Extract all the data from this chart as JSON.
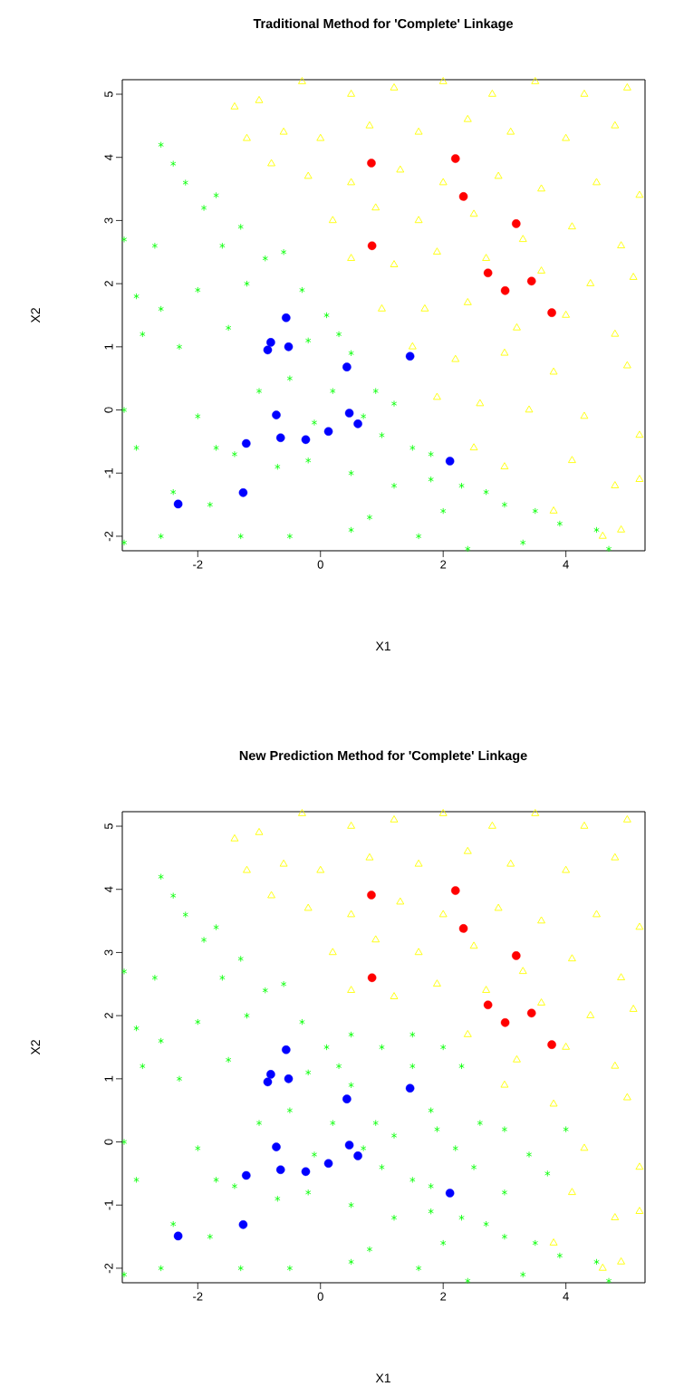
{
  "chart_data": [
    {
      "type": "scatter",
      "title": "Traditional Method for 'Complete' Linkage",
      "xlabel": "X1",
      "ylabel": "X2",
      "xlim": [
        -3.23,
        5.29
      ],
      "ylim": [
        -2.23,
        5.23
      ],
      "xticks": [
        -2,
        0,
        2,
        4
      ],
      "yticks": [
        -2,
        -1,
        0,
        1,
        2,
        3,
        4,
        5
      ],
      "series": [
        {
          "color": "#00ff00",
          "marker": "cross",
          "x": [
            -2.6,
            -2.4,
            -2.2,
            -1.9,
            -1.7,
            -1.3,
            -1.6,
            -2.7,
            -3.2,
            -3.0,
            -2.6,
            -2.9,
            -2.3,
            -2.0,
            -1.5,
            -1.2,
            -0.9,
            -0.6,
            -0.3,
            0.1,
            0.3,
            -0.2,
            0.5,
            0.9,
            1.2,
            0.7,
            1.0,
            1.5,
            1.8,
            2.3,
            2.7,
            3.0,
            3.5,
            3.9,
            4.5,
            4.7,
            2.0,
            1.2,
            0.5,
            -0.2,
            -0.7,
            -1.4,
            -2.0,
            -1.7,
            -2.4,
            -2.6,
            -3.2,
            -3.0,
            -3.2,
            -1.0,
            -0.5,
            0.2,
            -0.1,
            0.8,
            1.6,
            2.4,
            -1.3,
            -0.5,
            0.5,
            -1.8,
            3.3,
            1.8
          ],
          "values": [
            4.2,
            3.9,
            3.6,
            3.2,
            3.4,
            2.9,
            2.6,
            2.6,
            2.7,
            1.8,
            1.6,
            1.2,
            1.0,
            1.9,
            1.3,
            2.0,
            2.4,
            2.5,
            1.9,
            1.5,
            1.2,
            1.1,
            0.9,
            0.3,
            0.1,
            -0.1,
            -0.4,
            -0.6,
            -0.7,
            -1.2,
            -1.3,
            -1.5,
            -1.6,
            -1.8,
            -1.9,
            -2.2,
            -1.6,
            -1.2,
            -1.0,
            -0.8,
            -0.9,
            -0.7,
            -0.1,
            -0.6,
            -1.3,
            -2.0,
            -2.1,
            -0.6,
            0.0,
            0.3,
            0.5,
            0.3,
            -0.2,
            -1.7,
            -2.0,
            -2.2,
            -2.0,
            -2.0,
            -1.9,
            -1.5,
            -2.1,
            -1.1
          ]
        },
        {
          "color": "#ffff00",
          "marker": "triangle",
          "x": [
            -1.4,
            -1.0,
            -0.3,
            0.5,
            1.2,
            2.0,
            2.8,
            3.5,
            4.3,
            5.0,
            -1.2,
            -0.6,
            0.0,
            0.8,
            1.6,
            2.4,
            3.1,
            4.0,
            4.8,
            -0.8,
            -0.2,
            0.5,
            1.3,
            2.0,
            2.9,
            3.6,
            4.5,
            5.2,
            0.2,
            0.9,
            1.6,
            2.5,
            3.3,
            4.1,
            4.9,
            0.5,
            1.2,
            1.9,
            2.7,
            3.6,
            4.4,
            5.1,
            1.0,
            1.7,
            2.4,
            3.2,
            4.0,
            4.8,
            1.5,
            2.2,
            3.0,
            3.8,
            5.0,
            1.9,
            2.6,
            3.4,
            4.3,
            5.2,
            2.5,
            3.0,
            4.1,
            4.8,
            5.2,
            3.8,
            4.6,
            4.9
          ],
          "values": [
            4.8,
            4.9,
            5.2,
            5.0,
            5.1,
            5.2,
            5.0,
            5.2,
            5.0,
            5.1,
            4.3,
            4.4,
            4.3,
            4.5,
            4.4,
            4.6,
            4.4,
            4.3,
            4.5,
            3.9,
            3.7,
            3.6,
            3.8,
            3.6,
            3.7,
            3.5,
            3.6,
            3.4,
            3.0,
            3.2,
            3.0,
            3.1,
            2.7,
            2.9,
            2.6,
            2.4,
            2.3,
            2.5,
            2.4,
            2.2,
            2.0,
            2.1,
            1.6,
            1.6,
            1.7,
            1.3,
            1.5,
            1.2,
            1.0,
            0.8,
            0.9,
            0.6,
            0.7,
            0.2,
            0.1,
            0.0,
            -0.1,
            -0.4,
            -0.6,
            -0.9,
            -0.8,
            -1.2,
            -1.1,
            -1.6,
            -2.0,
            -1.9
          ]
        },
        {
          "color": "#0000ff",
          "marker": "circle",
          "x": [
            -2.32,
            -1.26,
            -1.21,
            -0.72,
            -0.65,
            -0.24,
            0.13,
            0.47,
            0.61,
            0.43,
            -0.86,
            -0.81,
            -0.56,
            -0.52,
            1.46,
            2.11
          ],
          "values": [
            -1.49,
            -1.31,
            -0.53,
            -0.08,
            -0.44,
            -0.47,
            -0.34,
            -0.05,
            -0.22,
            0.68,
            0.95,
            1.07,
            1.46,
            1.0,
            0.85,
            -0.81
          ]
        },
        {
          "color": "#ff0000",
          "marker": "circle",
          "x": [
            0.83,
            2.2,
            2.33,
            3.19,
            2.73,
            3.01,
            3.44,
            3.77,
            0.84
          ],
          "values": [
            3.91,
            3.98,
            3.38,
            2.95,
            2.17,
            1.89,
            2.04,
            1.54,
            2.6
          ]
        }
      ]
    },
    {
      "type": "scatter",
      "title": "New Prediction Method for 'Complete' Linkage",
      "xlabel": "X1",
      "ylabel": "X2",
      "xlim": [
        -3.23,
        5.29
      ],
      "ylim": [
        -2.23,
        5.23
      ],
      "xticks": [
        -2,
        0,
        2,
        4
      ],
      "yticks": [
        -2,
        -1,
        0,
        1,
        2,
        3,
        4,
        5
      ],
      "series": [
        {
          "color": "#00ff00",
          "marker": "cross",
          "x": [
            -2.6,
            -2.4,
            -2.2,
            -1.9,
            -1.7,
            -1.3,
            -1.6,
            -2.7,
            -3.2,
            -3.0,
            -2.6,
            -2.9,
            -2.3,
            -2.0,
            -1.5,
            -1.2,
            -0.9,
            -0.6,
            -0.3,
            0.1,
            0.3,
            -0.2,
            0.5,
            0.9,
            1.2,
            0.7,
            1.0,
            1.5,
            1.8,
            2.3,
            2.7,
            3.0,
            3.5,
            3.9,
            4.5,
            4.7,
            2.0,
            1.2,
            0.5,
            -0.2,
            -0.7,
            -1.4,
            -2.0,
            -1.7,
            -2.4,
            -2.6,
            -3.2,
            -3.0,
            -3.2,
            -1.0,
            -0.5,
            0.2,
            -0.1,
            0.8,
            1.6,
            2.4,
            -1.3,
            -0.5,
            0.5,
            -1.8,
            3.3,
            1.8,
            0.5,
            1.0,
            1.5,
            2.0,
            2.3,
            1.5,
            1.8,
            2.6,
            3.0,
            3.4,
            4.0,
            3.7,
            2.5,
            2.2,
            3.0,
            1.9
          ],
          "values": [
            4.2,
            3.9,
            3.6,
            3.2,
            3.4,
            2.9,
            2.6,
            2.6,
            2.7,
            1.8,
            1.6,
            1.2,
            1.0,
            1.9,
            1.3,
            2.0,
            2.4,
            2.5,
            1.9,
            1.5,
            1.2,
            1.1,
            0.9,
            0.3,
            0.1,
            -0.1,
            -0.4,
            -0.6,
            -0.7,
            -1.2,
            -1.3,
            -1.5,
            -1.6,
            -1.8,
            -1.9,
            -2.2,
            -1.6,
            -1.2,
            -1.0,
            -0.8,
            -0.9,
            -0.7,
            -0.1,
            -0.6,
            -1.3,
            -2.0,
            -2.1,
            -0.6,
            0.0,
            0.3,
            0.5,
            0.3,
            -0.2,
            -1.7,
            -2.0,
            -2.2,
            -2.0,
            -2.0,
            -1.9,
            -1.5,
            -2.1,
            -1.1,
            1.7,
            1.5,
            1.7,
            1.5,
            1.2,
            1.2,
            0.5,
            0.3,
            0.2,
            -0.2,
            0.2,
            -0.5,
            -0.4,
            -0.1,
            -0.8,
            0.2
          ]
        },
        {
          "color": "#ffff00",
          "marker": "triangle",
          "x": [
            -1.4,
            -1.0,
            -0.3,
            0.5,
            1.2,
            2.0,
            2.8,
            3.5,
            4.3,
            5.0,
            -1.2,
            -0.6,
            0.0,
            0.8,
            1.6,
            2.4,
            3.1,
            4.0,
            4.8,
            -0.8,
            -0.2,
            0.5,
            1.3,
            2.0,
            2.9,
            3.6,
            4.5,
            5.2,
            0.2,
            0.9,
            1.6,
            2.5,
            3.3,
            4.1,
            4.9,
            0.5,
            1.2,
            1.9,
            2.7,
            3.6,
            4.4,
            5.1,
            2.4,
            3.2,
            4.0,
            4.8,
            3.0,
            3.8,
            5.0,
            4.3,
            5.2,
            4.1,
            4.8,
            5.2,
            3.8,
            4.6,
            4.9
          ],
          "values": [
            4.8,
            4.9,
            5.2,
            5.0,
            5.1,
            5.2,
            5.0,
            5.2,
            5.0,
            5.1,
            4.3,
            4.4,
            4.3,
            4.5,
            4.4,
            4.6,
            4.4,
            4.3,
            4.5,
            3.9,
            3.7,
            3.6,
            3.8,
            3.6,
            3.7,
            3.5,
            3.6,
            3.4,
            3.0,
            3.2,
            3.0,
            3.1,
            2.7,
            2.9,
            2.6,
            2.4,
            2.3,
            2.5,
            2.4,
            2.2,
            2.0,
            2.1,
            1.7,
            1.3,
            1.5,
            1.2,
            0.9,
            0.6,
            0.7,
            -0.1,
            -0.4,
            -0.8,
            -1.2,
            -1.1,
            -1.6,
            -2.0,
            -1.9
          ]
        },
        {
          "color": "#0000ff",
          "marker": "circle",
          "x": [
            -2.32,
            -1.26,
            -1.21,
            -0.72,
            -0.65,
            -0.24,
            0.13,
            0.47,
            0.61,
            0.43,
            -0.86,
            -0.81,
            -0.56,
            -0.52,
            1.46,
            2.11
          ],
          "values": [
            -1.49,
            -1.31,
            -0.53,
            -0.08,
            -0.44,
            -0.47,
            -0.34,
            -0.05,
            -0.22,
            0.68,
            0.95,
            1.07,
            1.46,
            1.0,
            0.85,
            -0.81
          ]
        },
        {
          "color": "#ff0000",
          "marker": "circle",
          "x": [
            0.83,
            2.2,
            2.33,
            3.19,
            2.73,
            3.01,
            3.44,
            3.77,
            0.84
          ],
          "values": [
            3.91,
            3.98,
            3.38,
            2.95,
            2.17,
            1.89,
            2.04,
            1.54,
            2.6
          ]
        }
      ]
    }
  ]
}
